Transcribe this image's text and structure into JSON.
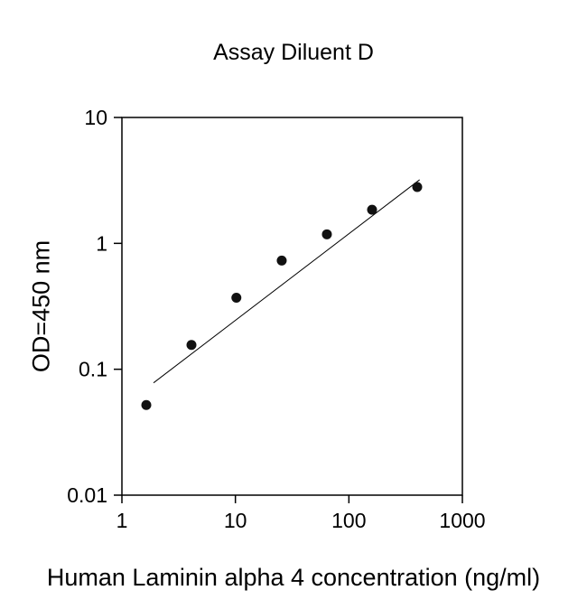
{
  "chart_data": {
    "type": "scatter",
    "title": "Assay Diluent D",
    "xlabel": "Human Laminin alpha 4 concentration (ng/ml)",
    "ylabel": "OD=450 nm",
    "x_scale": "log",
    "y_scale": "log",
    "xlim": [
      1,
      1000
    ],
    "ylim": [
      0.01,
      10
    ],
    "grid": false,
    "legend": "none",
    "x_ticks": [
      {
        "value": 1,
        "label": "1"
      },
      {
        "value": 10,
        "label": "10"
      },
      {
        "value": 100,
        "label": "100"
      },
      {
        "value": 1000,
        "label": "1000"
      }
    ],
    "y_ticks": [
      {
        "value": 0.01,
        "label": "0.01"
      },
      {
        "value": 0.1,
        "label": "0.1"
      },
      {
        "value": 1,
        "label": "1"
      },
      {
        "value": 10,
        "label": "10"
      }
    ],
    "points": [
      {
        "x": 1.64,
        "y": 0.052
      },
      {
        "x": 4.1,
        "y": 0.156
      },
      {
        "x": 10.2,
        "y": 0.37
      },
      {
        "x": 25.6,
        "y": 0.73
      },
      {
        "x": 64,
        "y": 1.18
      },
      {
        "x": 160,
        "y": 1.85
      },
      {
        "x": 400,
        "y": 2.8
      }
    ],
    "trend_line": {
      "x1": 1.9,
      "y1": 0.078,
      "x2": 420,
      "y2": 3.2
    },
    "marker": {
      "shape": "circle",
      "color": "#111111",
      "radius": 5.5
    },
    "colors": {
      "background": "#ffffff",
      "axis": "#000000",
      "text": "#000000"
    }
  }
}
